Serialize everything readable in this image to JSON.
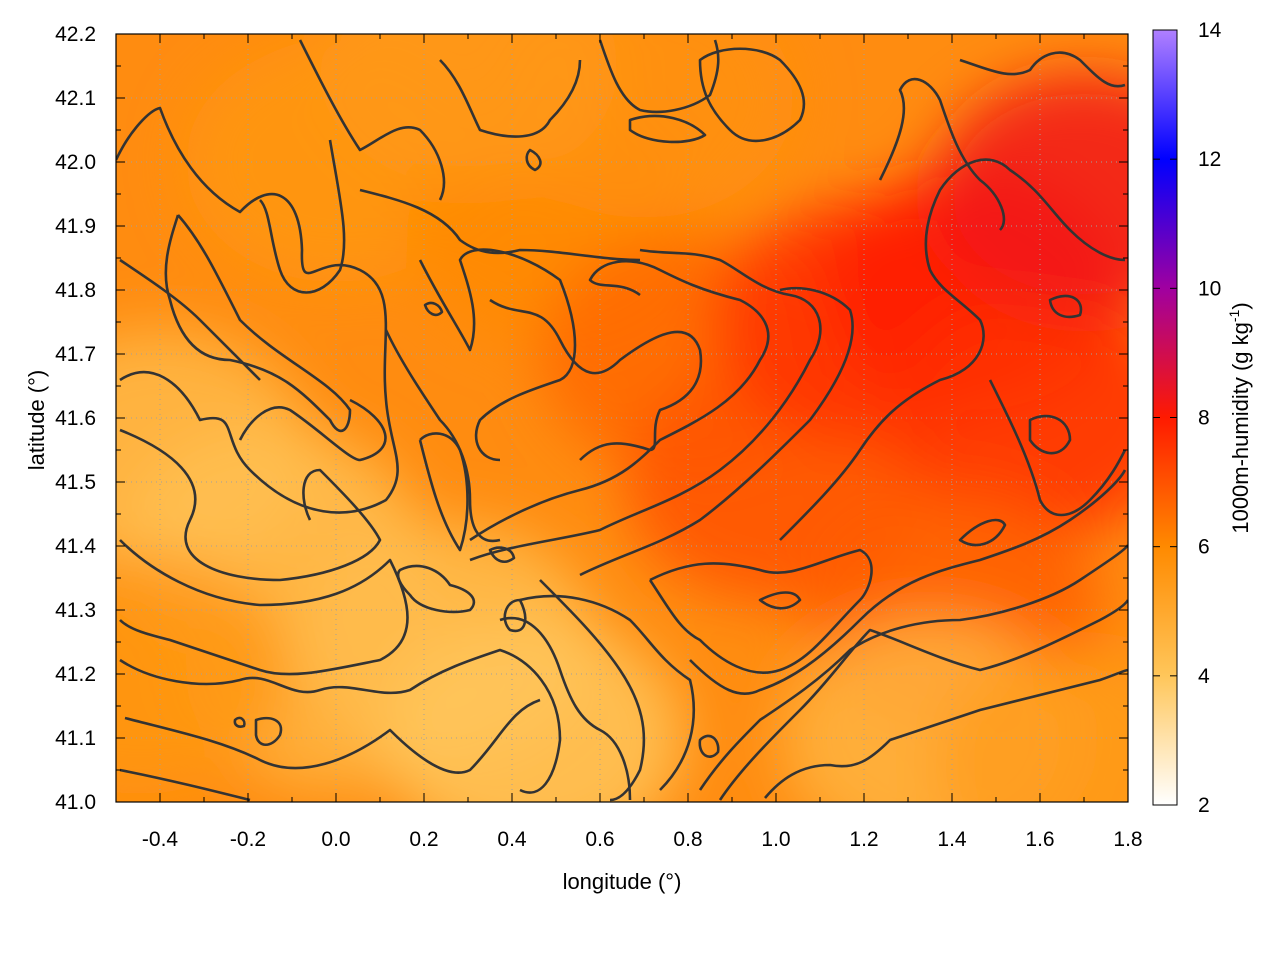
{
  "chart_data": {
    "type": "heatmap",
    "title": "",
    "xlabel": "longitude (°)",
    "ylabel": "latitude (°)",
    "xlim": [
      -0.5,
      1.8
    ],
    "ylim": [
      41.0,
      42.2
    ],
    "x_ticks": [
      -0.4,
      -0.2,
      0.0,
      0.2,
      0.4,
      0.6,
      0.8,
      1.0,
      1.2,
      1.4,
      1.6,
      1.8
    ],
    "x_tick_labels": [
      "-0.4",
      "-0.2",
      "0.0",
      "0.2",
      "0.4",
      "0.6",
      "0.8",
      "1.0",
      "1.2",
      "1.4",
      "1.6",
      "1.8"
    ],
    "y_ticks": [
      41.0,
      41.1,
      41.2,
      41.3,
      41.4,
      41.5,
      41.6,
      41.7,
      41.8,
      41.9,
      42.0,
      42.1,
      42.2
    ],
    "y_tick_labels": [
      "41.0",
      "41.1",
      "41.2",
      "41.3",
      "41.4",
      "41.5",
      "41.6",
      "41.7",
      "41.8",
      "41.9",
      "42.0",
      "42.1",
      "42.2"
    ],
    "grid": true,
    "colorbar": {
      "label_main": "1000m-humidity (g kg",
      "label_exp": "-1",
      "label_close": ")",
      "range": [
        2,
        14
      ],
      "ticks": [
        2,
        4,
        6,
        8,
        10,
        12,
        14
      ],
      "tick_labels": [
        "2",
        "4",
        "6",
        "8",
        "10",
        "12",
        "14"
      ],
      "stops": [
        {
          "value": 2,
          "color": "#ffffff"
        },
        {
          "value": 4,
          "color": "#ffc65a"
        },
        {
          "value": 6,
          "color": "#ff8a00"
        },
        {
          "value": 8,
          "color": "#ff1a00"
        },
        {
          "value": 10,
          "color": "#a000a0"
        },
        {
          "value": 12,
          "color": "#0000ff"
        },
        {
          "value": 14,
          "color": "#b080ff"
        }
      ]
    },
    "field_anchors": [
      {
        "lon": -0.4,
        "lat": 41.55,
        "value": 4.4
      },
      {
        "lon": -0.15,
        "lat": 41.4,
        "value": 4.2
      },
      {
        "lon": 0.0,
        "lat": 41.2,
        "value": 4.6
      },
      {
        "lon": 0.25,
        "lat": 41.25,
        "value": 4.3
      },
      {
        "lon": 0.45,
        "lat": 41.1,
        "value": 4.0
      },
      {
        "lon": -0.45,
        "lat": 41.2,
        "value": 5.6
      },
      {
        "lon": 0.0,
        "lat": 42.0,
        "value": 5.6
      },
      {
        "lon": 0.5,
        "lat": 41.9,
        "value": 6.0
      },
      {
        "lon": 0.8,
        "lat": 41.7,
        "value": 6.6
      },
      {
        "lon": 1.0,
        "lat": 41.5,
        "value": 7.0
      },
      {
        "lon": 1.2,
        "lat": 41.75,
        "value": 7.6
      },
      {
        "lon": 1.45,
        "lat": 41.8,
        "value": 8.0
      },
      {
        "lon": 1.6,
        "lat": 41.6,
        "value": 7.6
      },
      {
        "lon": 1.7,
        "lat": 41.95,
        "value": 8.3
      },
      {
        "lon": 1.4,
        "lat": 41.3,
        "value": 6.8
      },
      {
        "lon": 1.35,
        "lat": 41.1,
        "value": 4.6
      },
      {
        "lon": 1.7,
        "lat": 41.05,
        "value": 5.4
      },
      {
        "lon": 0.7,
        "lat": 42.1,
        "value": 5.8
      },
      {
        "lon": 0.3,
        "lat": 42.15,
        "value": 5.5
      }
    ],
    "contour_levels": [
      5,
      6,
      7
    ]
  }
}
